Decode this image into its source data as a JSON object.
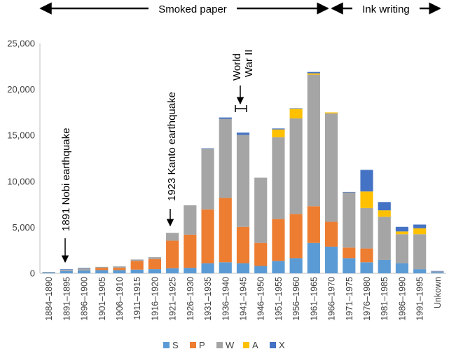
{
  "chart_data": {
    "type": "bar",
    "stacked": true,
    "categories": [
      "1884–1890",
      "1891–1895",
      "1896–1900",
      "1901–1905",
      "1906–1910",
      "1911–1915",
      "1916–1920",
      "1921–1925",
      "1926–1930",
      "1931–1935",
      "1936–1940",
      "1941–1945",
      "1946–1950",
      "1951–1955",
      "1956–1960",
      "1961–1965",
      "1966–1970",
      "1971–1975",
      "1976–1980",
      "1981–1985",
      "1986–1990",
      "1991–1995",
      "Unkown"
    ],
    "series": [
      {
        "name": "S",
        "color": "#5B9BD5",
        "values": [
          100,
          250,
          300,
          350,
          350,
          400,
          450,
          550,
          600,
          1100,
          1200,
          1100,
          800,
          1350,
          1650,
          3300,
          2900,
          1650,
          1200,
          1450,
          1100,
          450,
          120
        ]
      },
      {
        "name": "P",
        "color": "#ED7D31",
        "values": [
          0,
          0,
          0,
          250,
          250,
          950,
          1100,
          3000,
          3600,
          5850,
          7000,
          3950,
          2500,
          4550,
          4800,
          4000,
          2700,
          1150,
          1500,
          0,
          0,
          0,
          0
        ]
      },
      {
        "name": "W",
        "color": "#A5A5A5",
        "values": [
          50,
          150,
          250,
          100,
          150,
          150,
          200,
          850,
          3200,
          6600,
          8600,
          10000,
          7100,
          8900,
          10400,
          14300,
          11800,
          6000,
          4400,
          4700,
          3150,
          3800,
          80
        ]
      },
      {
        "name": "A",
        "color": "#FFC000",
        "values": [
          0,
          0,
          0,
          0,
          0,
          0,
          0,
          0,
          0,
          0,
          0,
          0,
          0,
          850,
          1050,
          150,
          100,
          0,
          1800,
          700,
          300,
          650,
          0
        ]
      },
      {
        "name": "X",
        "color": "#4472C4",
        "values": [
          0,
          50,
          50,
          0,
          0,
          0,
          0,
          0,
          0,
          50,
          150,
          250,
          0,
          100,
          50,
          150,
          0,
          50,
          2350,
          900,
          500,
          400,
          50
        ]
      }
    ],
    "ylim": [
      0,
      25000
    ],
    "yticks": [
      "0",
      "5,000",
      "10,000",
      "15,000",
      "20,000",
      "25,000"
    ],
    "ytick_values": [
      0,
      5000,
      10000,
      15000,
      20000,
      25000
    ],
    "legend_position": "bottom",
    "grid": false
  },
  "annotations": {
    "smoked_paper": "Smoked paper",
    "ink_writing": "Ink writing",
    "nobi": "1891 Nobi earthquake",
    "kanto": "1923 Kanto earthquake",
    "ww_line1": "World",
    "ww_line2": "War II"
  }
}
